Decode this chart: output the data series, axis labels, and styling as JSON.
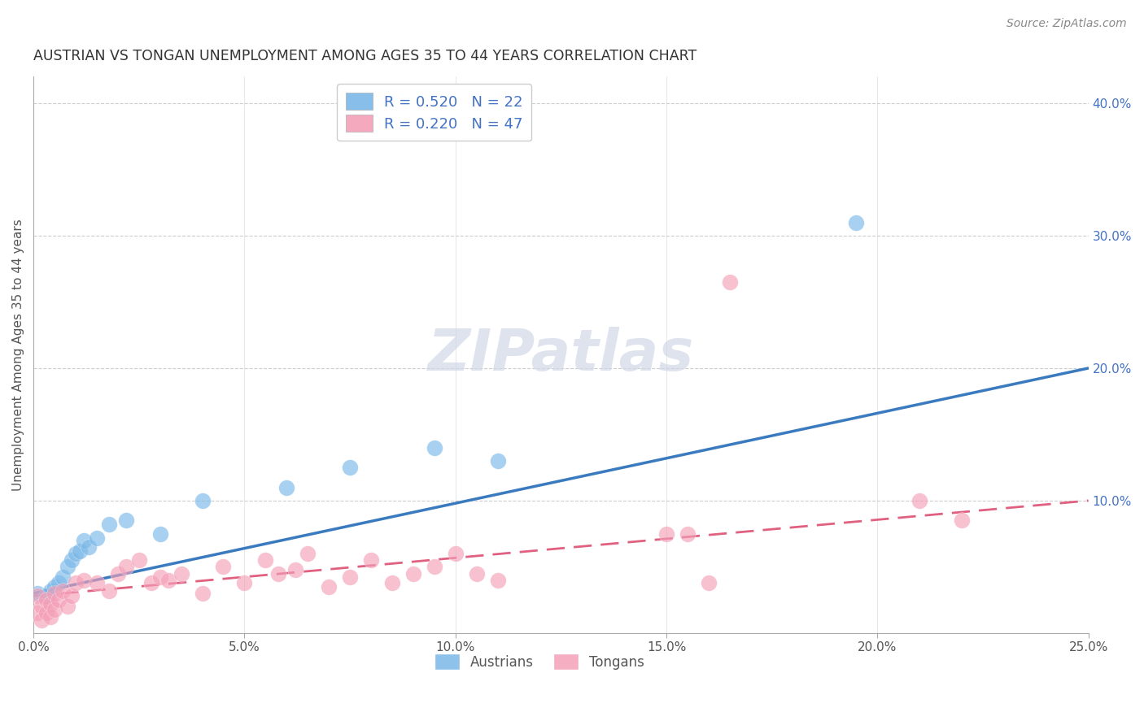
{
  "title": "AUSTRIAN VS TONGAN UNEMPLOYMENT AMONG AGES 35 TO 44 YEARS CORRELATION CHART",
  "source": "Source: ZipAtlas.com",
  "ylabel": "Unemployment Among Ages 35 to 44 years",
  "xlim": [
    0.0,
    0.25
  ],
  "ylim": [
    0.0,
    0.42
  ],
  "x_ticks": [
    0.0,
    0.05,
    0.1,
    0.15,
    0.2,
    0.25
  ],
  "x_tick_labels": [
    "0.0%",
    "5.0%",
    "10.0%",
    "15.0%",
    "20.0%",
    "25.0%"
  ],
  "y_ticks_right": [
    0.1,
    0.2,
    0.3,
    0.4
  ],
  "y_tick_labels_right": [
    "10.0%",
    "20.0%",
    "30.0%",
    "40.0%"
  ],
  "grid_color": "#c8c8c8",
  "background_color": "#ffffff",
  "austrians_color": "#7ab8e8",
  "tongans_color": "#f4a0b8",
  "aus_line_color": "#3a7abf",
  "ton_line_color": "#e06080",
  "austrians_x": [
    0.001,
    0.003,
    0.004,
    0.005,
    0.006,
    0.007,
    0.008,
    0.009,
    0.01,
    0.011,
    0.012,
    0.013,
    0.015,
    0.018,
    0.022,
    0.03,
    0.04,
    0.06,
    0.075,
    0.095,
    0.11,
    0.195
  ],
  "austrians_y": [
    0.03,
    0.028,
    0.032,
    0.035,
    0.038,
    0.042,
    0.05,
    0.055,
    0.06,
    0.062,
    0.07,
    0.065,
    0.072,
    0.082,
    0.085,
    0.075,
    0.1,
    0.11,
    0.125,
    0.14,
    0.13,
    0.31
  ],
  "tongans_x": [
    0.001,
    0.001,
    0.002,
    0.002,
    0.003,
    0.003,
    0.004,
    0.004,
    0.005,
    0.005,
    0.006,
    0.007,
    0.008,
    0.009,
    0.01,
    0.012,
    0.015,
    0.018,
    0.02,
    0.022,
    0.025,
    0.028,
    0.03,
    0.032,
    0.035,
    0.04,
    0.045,
    0.05,
    0.055,
    0.058,
    0.062,
    0.065,
    0.07,
    0.075,
    0.08,
    0.085,
    0.09,
    0.095,
    0.1,
    0.105,
    0.11,
    0.15,
    0.155,
    0.16,
    0.165,
    0.21,
    0.22
  ],
  "tongans_y": [
    0.028,
    0.015,
    0.02,
    0.01,
    0.025,
    0.015,
    0.022,
    0.012,
    0.03,
    0.018,
    0.025,
    0.032,
    0.02,
    0.028,
    0.038,
    0.04,
    0.038,
    0.032,
    0.045,
    0.05,
    0.055,
    0.038,
    0.042,
    0.04,
    0.045,
    0.03,
    0.05,
    0.038,
    0.055,
    0.045,
    0.048,
    0.06,
    0.035,
    0.042,
    0.055,
    0.038,
    0.045,
    0.05,
    0.06,
    0.045,
    0.04,
    0.075,
    0.075,
    0.038,
    0.265,
    0.1,
    0.085
  ],
  "aus_line_x0": 0.0,
  "aus_line_y0": 0.03,
  "aus_line_x1": 0.25,
  "aus_line_y1": 0.2,
  "ton_line_x0": 0.0,
  "ton_line_y0": 0.028,
  "ton_line_x1": 0.25,
  "ton_line_y1": 0.1,
  "legend_items": [
    {
      "label": "R = 0.520   N = 22",
      "color": "#7ab8e8"
    },
    {
      "label": "R = 0.220   N = 47",
      "color": "#f4a0b8"
    }
  ],
  "bottom_legend_labels": [
    "Austrians",
    "Tongans"
  ],
  "title_fontsize": 12.5,
  "axis_label_fontsize": 11,
  "tick_fontsize": 11,
  "source_fontsize": 10,
  "legend_fontsize": 13,
  "watermark_text": "ZIPatlas",
  "watermark_fontsize": 52
}
